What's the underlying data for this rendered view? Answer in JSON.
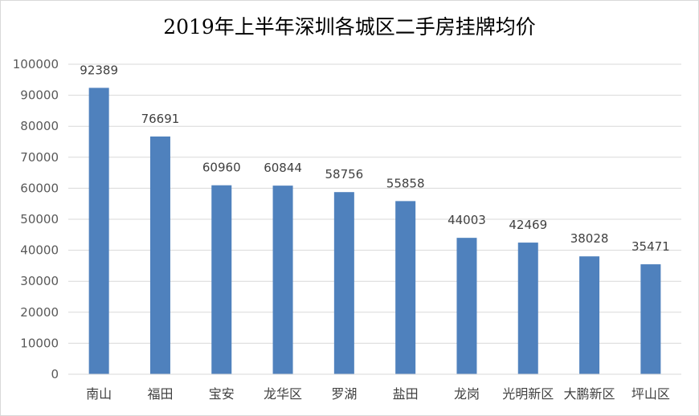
{
  "chart_data": {
    "type": "bar",
    "title": "2019年上半年深圳各城区二手房挂牌均价",
    "xlabel": "",
    "ylabel": "",
    "categories": [
      "南山",
      "福田",
      "宝安",
      "龙华区",
      "罗湖",
      "盐田",
      "龙岗",
      "光明新区",
      "大鹏新区",
      "坪山区"
    ],
    "values": [
      92389,
      76691,
      60960,
      60844,
      58756,
      55858,
      44003,
      42469,
      38028,
      35471
    ],
    "ylim": [
      0,
      100000
    ],
    "yticks": [
      0,
      10000,
      20000,
      30000,
      40000,
      50000,
      60000,
      70000,
      80000,
      90000,
      100000
    ],
    "grid": true,
    "legend": "none",
    "bar_color": "#4f81bd",
    "grid_color": "#d9d9d9"
  }
}
